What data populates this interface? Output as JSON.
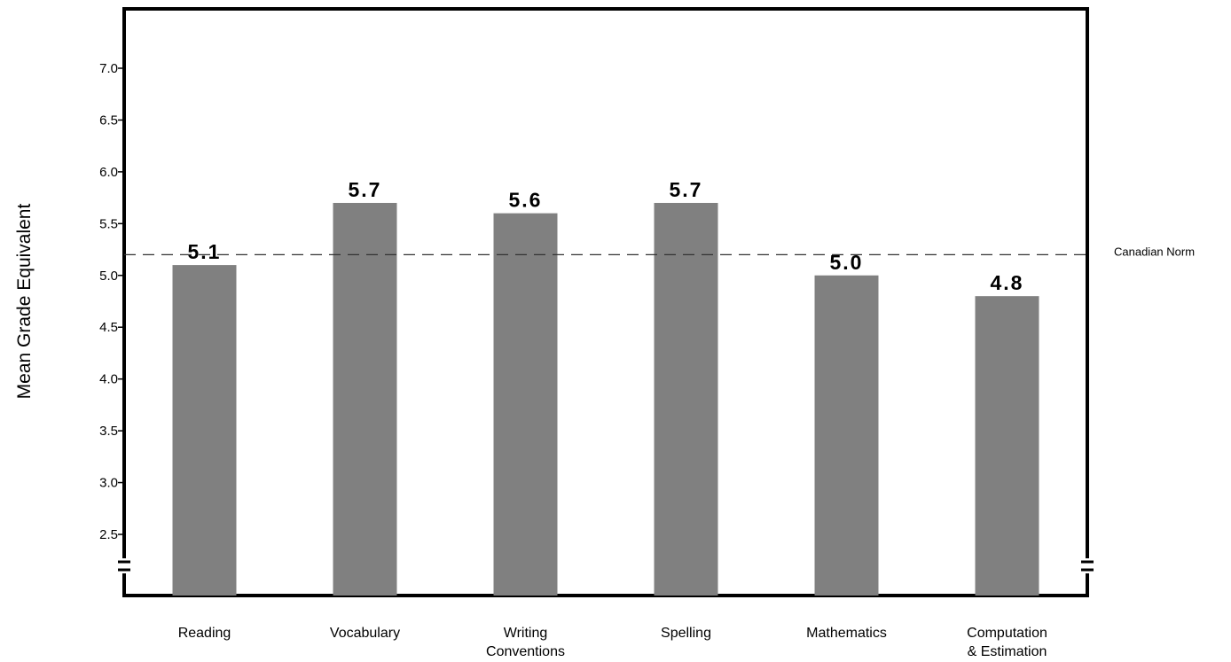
{
  "chart_data": {
    "type": "bar",
    "categories": [
      [
        "Reading"
      ],
      [
        "Vocabulary"
      ],
      [
        "Writing",
        "Conventions"
      ],
      [
        "Spelling"
      ],
      [
        "Mathematics"
      ],
      [
        "Computation",
        "& Estimation"
      ]
    ],
    "values": [
      5.1,
      5.7,
      5.6,
      5.7,
      5.0,
      4.8
    ],
    "value_labels": [
      "5.1",
      "5.7",
      "5.6",
      "5.7",
      "5.0",
      "4.8"
    ],
    "title": "",
    "xlabel": "",
    "ylabel": "Mean Grade Equivalent",
    "yticks": [
      "2.5",
      "3.0",
      "3.5",
      "4.0",
      "4.5",
      "5.0",
      "5.5",
      "6.0",
      "6.5",
      "7.0"
    ],
    "ylim": [
      2.5,
      7.0
    ],
    "y_axis_break": true,
    "grid": false,
    "bar_color": "#808080",
    "reference_line": {
      "value": 5.2,
      "label": "Canadian Norm",
      "style": "dashed"
    }
  }
}
